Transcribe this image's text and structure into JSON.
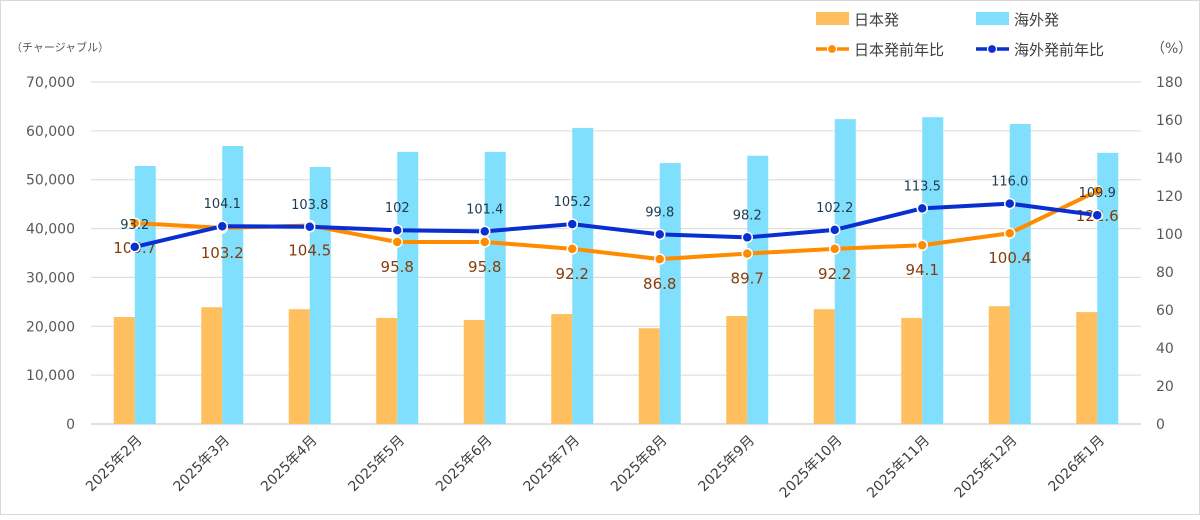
{
  "chart_data": {
    "type": "bar+line",
    "categories": [
      "2025年2月",
      "2025年3月",
      "2025年4月",
      "2025年5月",
      "2025年6月",
      "2025年7月",
      "2025年8月",
      "2025年9月",
      "2025年10月",
      "2025年11月",
      "2025年12月",
      "2026年1月"
    ],
    "left_axis": {
      "unit_label": "（チャージャブル）",
      "ylim": [
        0,
        70000
      ],
      "ticks": [
        "0",
        "10,000",
        "20,000",
        "30,000",
        "40,000",
        "50,000",
        "60,000",
        "70,000"
      ],
      "tick_values": [
        0,
        10000,
        20000,
        30000,
        40000,
        50000,
        60000,
        70000
      ]
    },
    "right_axis": {
      "unit_label": "（%）",
      "ylim": [
        0,
        180
      ],
      "ticks": [
        "0",
        "20",
        "40",
        "60",
        "80",
        "100",
        "120",
        "140",
        "160",
        "180"
      ],
      "tick_values": [
        0,
        20,
        40,
        60,
        80,
        100,
        120,
        140,
        160,
        180
      ]
    },
    "bar_series": [
      {
        "name": "日本発",
        "color": "#FFBF5E",
        "values": [
          21900,
          23900,
          23500,
          21700,
          21300,
          22500,
          19600,
          22100,
          23500,
          21700,
          24100,
          22900
        ]
      },
      {
        "name": "海外発",
        "color": "#7FDFFC",
        "values": [
          52800,
          56900,
          52600,
          55700,
          55700,
          60600,
          53400,
          54900,
          62400,
          62800,
          61400,
          55500
        ]
      }
    ],
    "line_series": [
      {
        "name": "日本発前年比",
        "color": "#FF8C00",
        "label_color": "#843C0C",
        "values": [
          105.7,
          103.2,
          104.5,
          95.8,
          95.8,
          92.2,
          86.8,
          89.7,
          92.2,
          94.1,
          100.4,
          122.6
        ],
        "labels": [
          "105.7",
          "103.2",
          "104.5",
          "95.8",
          "95.8",
          "92.2",
          "86.8",
          "89.7",
          "92.2",
          "94.1",
          "100.4",
          "122.6"
        ]
      },
      {
        "name": "海外発前年比",
        "color": "#0A2FD0",
        "label_color": "#1F3A4D",
        "values": [
          93.2,
          104.1,
          103.8,
          102,
          101.4,
          105.2,
          99.8,
          98.2,
          102.2,
          113.5,
          116.0,
          109.9
        ],
        "labels": [
          "93.2",
          "104.1",
          "103.8",
          "102",
          "101.4",
          "105.2",
          "99.8",
          "98.2",
          "102.2",
          "113.5",
          "116.0",
          "109.9"
        ]
      }
    ],
    "legend_placement": "top-right",
    "grid": true
  }
}
